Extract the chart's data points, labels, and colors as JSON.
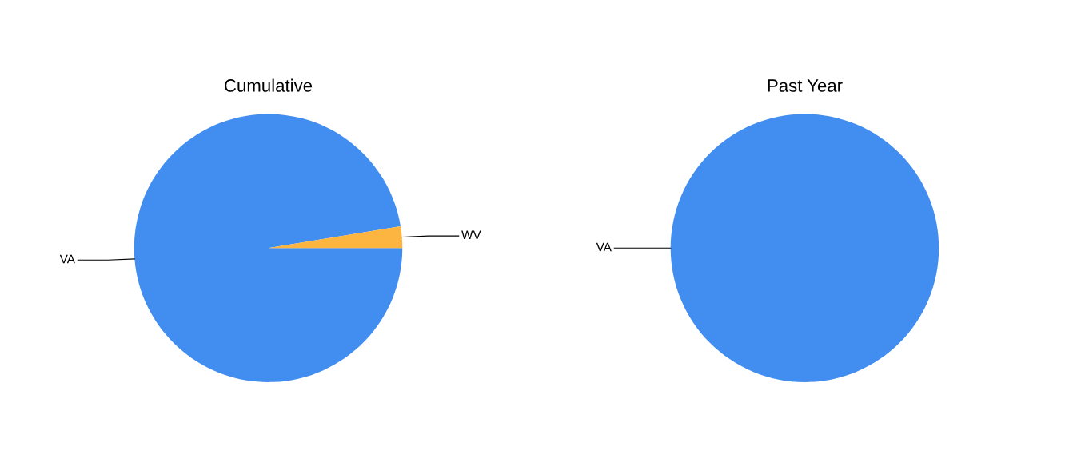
{
  "chart_data": [
    {
      "type": "pie",
      "title": "Cumulative",
      "categories": [
        "VA",
        "WV"
      ],
      "values": [
        97.4,
        2.6
      ],
      "colors": [
        "#428df0",
        "#fbb540"
      ]
    },
    {
      "type": "pie",
      "title": "Past Year",
      "categories": [
        "VA"
      ],
      "values": [
        100
      ],
      "colors": [
        "#428df0"
      ]
    }
  ]
}
